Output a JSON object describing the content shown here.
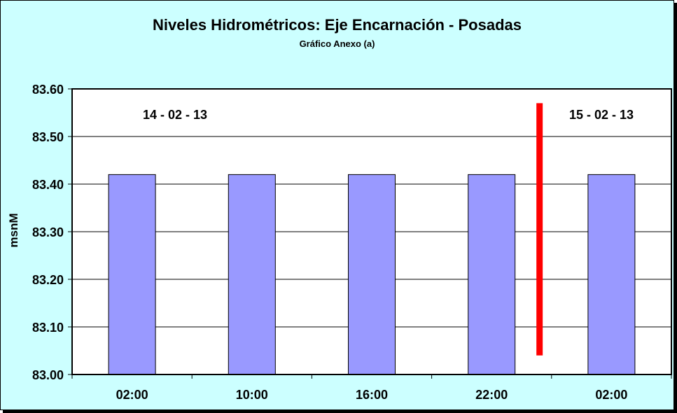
{
  "chart_data": {
    "type": "bar",
    "title": "Niveles Hidrométricos: Eje Encarnación - Posadas",
    "subtitle": "Gráfico Anexo (a)",
    "ylabel": "msnM",
    "categories": [
      "02:00",
      "10:00",
      "16:00",
      "22:00",
      "02:00"
    ],
    "values": [
      83.42,
      83.42,
      83.42,
      83.42,
      83.42
    ],
    "ylim": [
      83.0,
      83.6
    ],
    "yticks": [
      "83.00",
      "83.10",
      "83.20",
      "83.30",
      "83.40",
      "83.50",
      "83.60"
    ],
    "grid": true,
    "annotations": {
      "date_left": "14 - 02 - 13",
      "date_right": "15 - 02 - 13"
    },
    "day_separator": {
      "between_categories": [
        3,
        4
      ],
      "from": 83.04,
      "to": 83.57,
      "color": "#ff0000"
    },
    "colors": {
      "bar": "#9999ff",
      "background": "#ccffff",
      "plot": "#ffffff"
    }
  }
}
